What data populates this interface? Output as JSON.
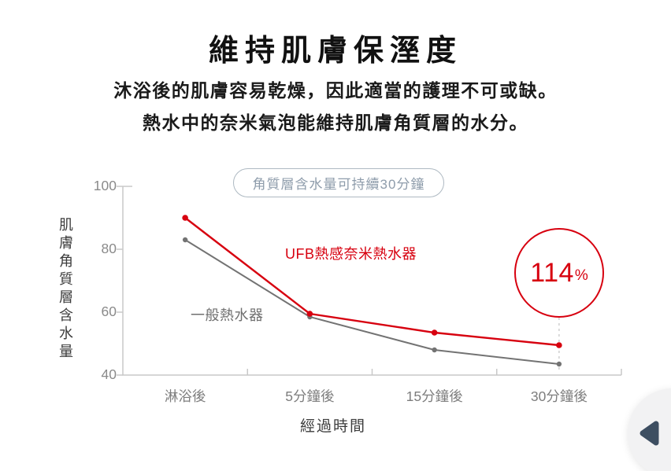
{
  "header": {
    "title": "維持肌膚保溼度",
    "subtitle_line1": "沐浴後的肌膚容易乾燥，因此適當的護理不可或缺。",
    "subtitle_line2": "熱水中的奈米氣泡能維持肌膚角質層的水分。"
  },
  "chart": {
    "badge_label": "角質層含水量可持續30分鐘",
    "y_axis_label": "肌膚角質層含水量",
    "x_axis_label": "經過時間",
    "annotation_value": "114",
    "annotation_unit": "%"
  },
  "chart_data": {
    "type": "line",
    "title": "維持肌膚保溼度",
    "categories": [
      "淋浴後",
      "5分鐘後",
      "15分鐘後",
      "30分鐘後"
    ],
    "series": [
      {
        "name": "UFB熱感奈米熱水器",
        "color": "#d7000f",
        "values": [
          90,
          59.5,
          53.5,
          49.5
        ]
      },
      {
        "name": "一般熱水器",
        "color": "#737373",
        "values": [
          83,
          58.5,
          48,
          43.5
        ]
      }
    ],
    "xlabel": "經過時間",
    "ylabel": "肌膚角質層含水量",
    "yticks": [
      100,
      80,
      60,
      40
    ],
    "ylim": [
      40,
      100
    ],
    "grid": false,
    "legend_position": "inline-annotations",
    "annotation": {
      "text": "114%",
      "category": "30分鐘後",
      "linked_series": "UFB熱感奈米熱水器"
    }
  },
  "colors": {
    "accent_red": "#d7000f",
    "line_gray": "#737373",
    "axis_gray": "#c8c8c8",
    "dash_gray": "#cfcfcf",
    "tick_label_gray": "#8a8a8a",
    "badge_blue_gray": "#8e9cab",
    "arrow_navy": "#3d4e61"
  },
  "carousel": {
    "prev_button_icon": "left-triangle"
  }
}
